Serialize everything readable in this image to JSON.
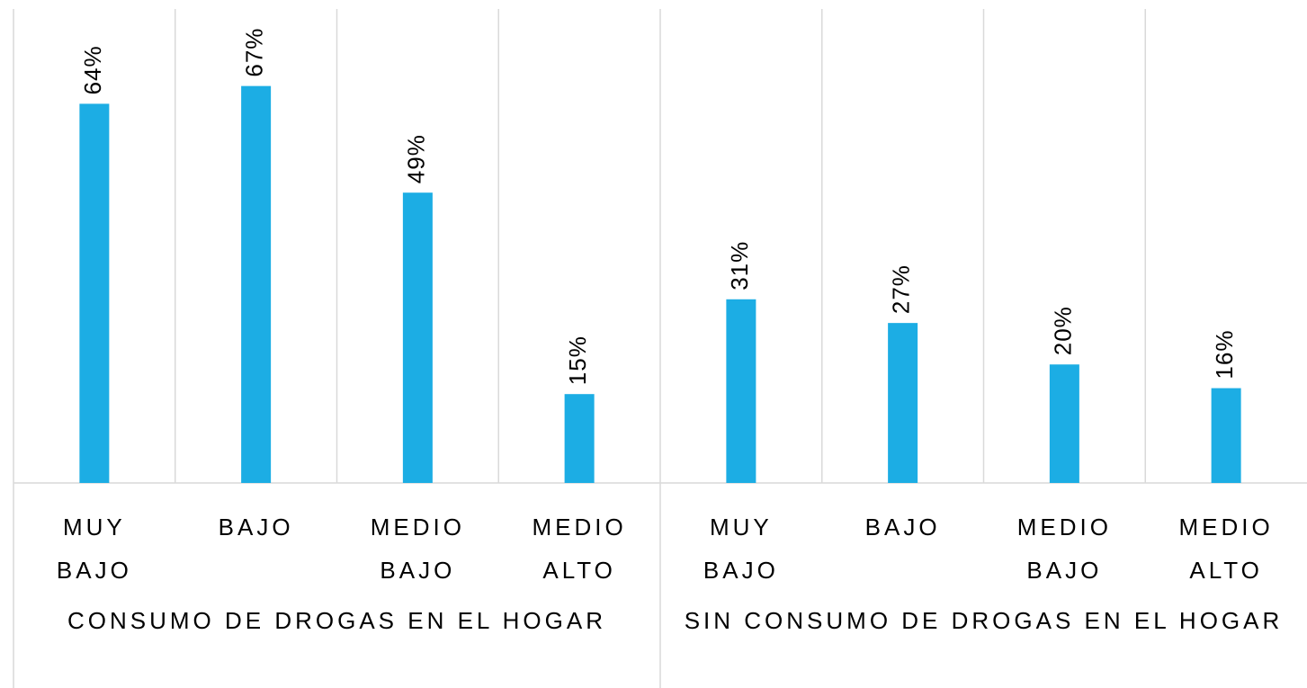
{
  "chart_data": {
    "type": "bar",
    "groups": [
      "CONSUMO DE DROGAS EN EL HOGAR",
      "SIN CONSUMO DE DROGAS EN EL HOGAR"
    ],
    "categories": [
      "MUY BAJO",
      "BAJO",
      "MEDIO BAJO",
      "MEDIO ALTO",
      "MUY BAJO",
      "BAJO",
      "MEDIO BAJO",
      "MEDIO ALTO"
    ],
    "values": [
      64,
      67,
      49,
      15,
      31,
      27,
      20,
      16
    ],
    "value_labels": [
      "64%",
      "67%",
      "49%",
      "15%",
      "31%",
      "27%",
      "20%",
      "16%"
    ],
    "color": "#1cade4",
    "ylim": [
      0,
      80
    ]
  }
}
